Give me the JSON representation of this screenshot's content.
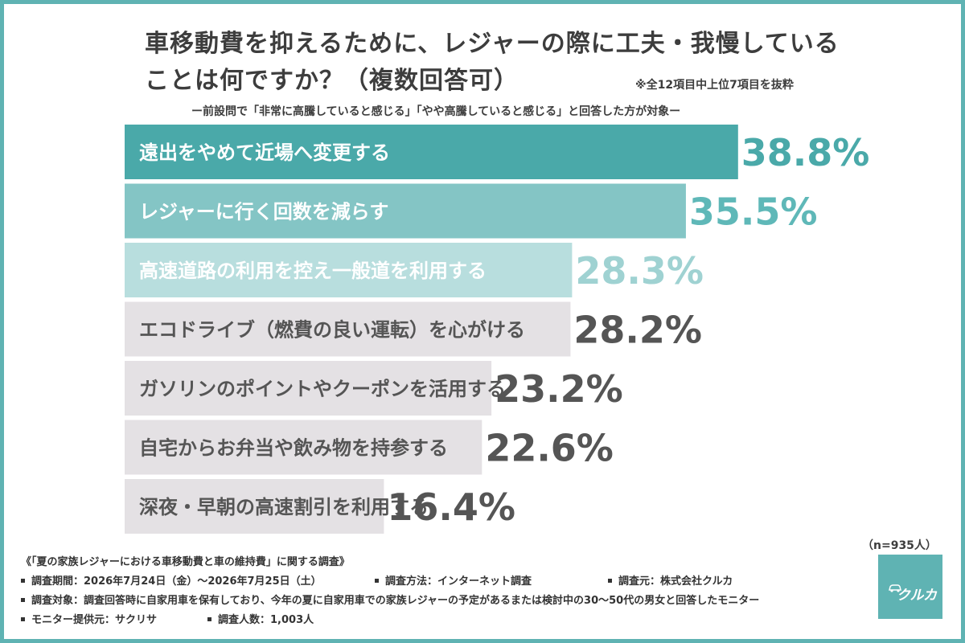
{
  "title_line1": "車移動費を抑えるために、レジャーの際に工夫・我慢している",
  "title_line2": "ことは何ですか？（複数回答可）",
  "note": "※全12項目中上位7項目を抜粋",
  "subtitle": "ー前設問で「非常に高騰していると感じる」「やや高騰していると感じる」と回答した方が対象ー",
  "chart_data": {
    "type": "bar",
    "orientation": "horizontal",
    "categories": [
      "遠出をやめて近場へ変更する",
      "レジャーに行く回数を減らす",
      "高速道路の利用を控え一般道を利用する",
      "エコドライブ（燃費の良い運転）を心がける",
      "ガソリンのポイントやクーポンを活用する",
      "自宅からお弁当や飲み物を持参する",
      "深夜・早朝の高速割引を利用する"
    ],
    "values": [
      38.8,
      35.5,
      28.3,
      28.2,
      23.2,
      22.6,
      16.4
    ],
    "value_labels": [
      "38.8%",
      "35.5%",
      "28.3%",
      "28.2%",
      "23.2%",
      "22.6%",
      "16.4%"
    ],
    "unit": "%",
    "colors": {
      "bars": [
        "#4aa9a9",
        "#84c5c5",
        "#b8dede",
        "#e4e1e4",
        "#e4e1e4",
        "#e4e1e4",
        "#e4e1e4"
      ],
      "labels": [
        "#ffffff",
        "#ffffff",
        "#ffffff",
        "#555555",
        "#555555",
        "#555555",
        "#555555"
      ],
      "values": [
        "#4aa9a9",
        "#5fb8b8",
        "#9fd2d2",
        "#555555",
        "#555555",
        "#555555",
        "#555555"
      ]
    }
  },
  "sample_size": "（n=935人）",
  "footer": {
    "survey_title": "《「夏の家族レジャーにおける車移動費と車の維持費」に関する調査》",
    "period": "調査期間：2026年7月24日（金）〜2026年7月25日（土）",
    "method": "調査方法：インターネット調査",
    "source": "調査元：株式会社クルカ",
    "target": "調査対象：調査回答時に自家用車を保有しており、今年の夏に自家用車での家族レジャーの予定があるまたは検討中の30〜50代の男女と回答したモニター",
    "provider": "モニター提供元：サクリサ",
    "respondents": "調査人数：1,003人"
  },
  "logo": {
    "small_text": "",
    "name": "クルカ",
    "bg_color": "#5fb3b3"
  }
}
